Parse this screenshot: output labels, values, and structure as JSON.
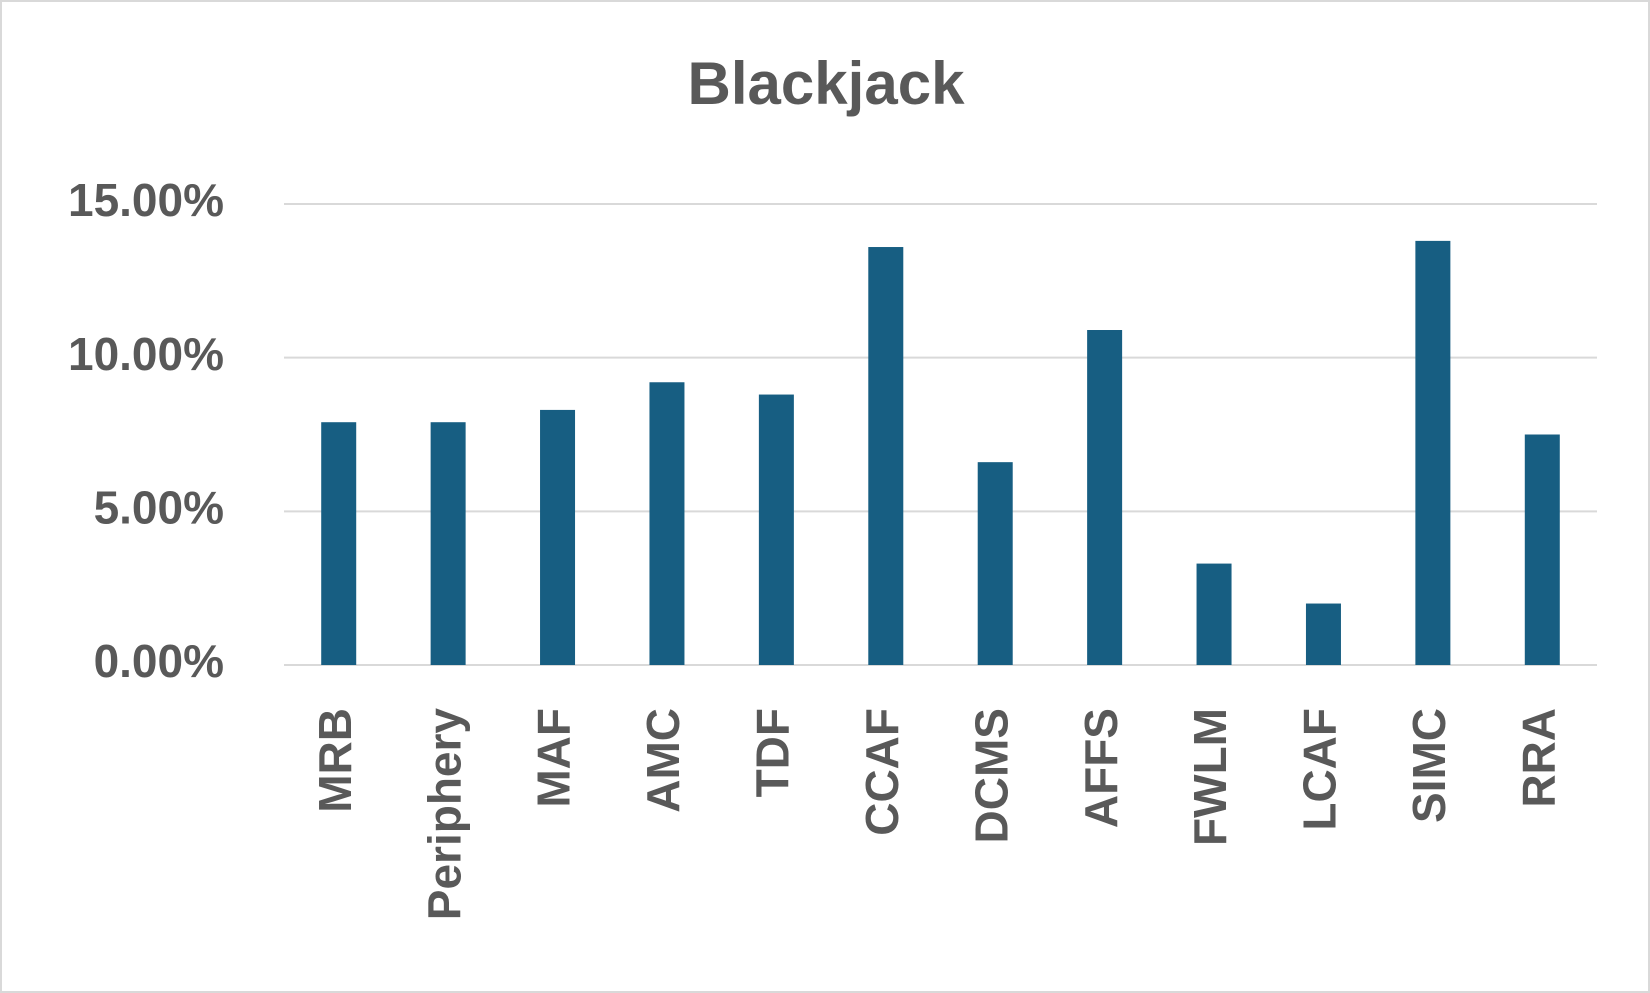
{
  "chart_data": {
    "type": "bar",
    "title": "Blackjack",
    "categories": [
      "MRB",
      "Periphery",
      "MAF",
      "AMC",
      "TDF",
      "CCAF",
      "DCMS",
      "AFFS",
      "FWLM",
      "LCAF",
      "SIMC",
      "RRA"
    ],
    "values": [
      7.9,
      7.9,
      8.3,
      9.2,
      8.8,
      13.6,
      6.6,
      10.9,
      3.3,
      2.0,
      13.8,
      7.5
    ],
    "color": "#175e82",
    "ylim": [
      0,
      15
    ],
    "yticks": [
      {
        "value": 0,
        "label": "0.00%"
      },
      {
        "value": 5,
        "label": "5.00%"
      },
      {
        "value": 10,
        "label": "10.00%"
      },
      {
        "value": 15,
        "label": "15.00%"
      }
    ],
    "grid": true
  }
}
